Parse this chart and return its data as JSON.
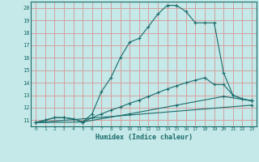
{
  "xlabel": "Humidex (Indice chaleur)",
  "bg_color": "#c5e8e8",
  "grid_color": "#d4a0a0",
  "line_color": "#1a6b6b",
  "xlim": [
    -0.5,
    23.5
  ],
  "ylim": [
    10.5,
    20.5
  ],
  "xticks": [
    0,
    1,
    2,
    3,
    4,
    5,
    6,
    7,
    8,
    9,
    10,
    11,
    12,
    13,
    14,
    15,
    16,
    17,
    18,
    19,
    20,
    21,
    22,
    23
  ],
  "yticks": [
    11,
    12,
    13,
    14,
    15,
    16,
    17,
    18,
    19,
    20
  ],
  "lines": [
    {
      "x": [
        0,
        1,
        2,
        3,
        4,
        5,
        6,
        7,
        8,
        9,
        10,
        11,
        12,
        13,
        14,
        15,
        16,
        17,
        18,
        19,
        20,
        21,
        22,
        23
      ],
      "y": [
        10.8,
        11.0,
        11.2,
        11.2,
        11.1,
        10.85,
        11.5,
        13.3,
        14.4,
        16.0,
        17.25,
        17.55,
        18.5,
        19.5,
        20.2,
        20.2,
        19.7,
        18.8,
        18.8,
        18.8,
        14.8,
        13.0,
        12.7,
        12.55
      ]
    },
    {
      "x": [
        0,
        1,
        2,
        3,
        4,
        5,
        6,
        7,
        8,
        9,
        10,
        11,
        12,
        13,
        14,
        15,
        16,
        17,
        18,
        19,
        20,
        21,
        22,
        23
      ],
      "y": [
        10.8,
        11.0,
        11.2,
        11.2,
        11.1,
        10.85,
        11.2,
        11.5,
        11.8,
        12.05,
        12.35,
        12.6,
        12.9,
        13.2,
        13.5,
        13.75,
        14.0,
        14.2,
        14.4,
        13.85,
        13.85,
        13.0,
        12.7,
        12.55
      ]
    },
    {
      "x": [
        0,
        5,
        10,
        15,
        20,
        23
      ],
      "y": [
        10.8,
        10.85,
        11.5,
        12.2,
        12.9,
        12.55
      ]
    },
    {
      "x": [
        0,
        23
      ],
      "y": [
        10.8,
        12.2
      ]
    }
  ]
}
